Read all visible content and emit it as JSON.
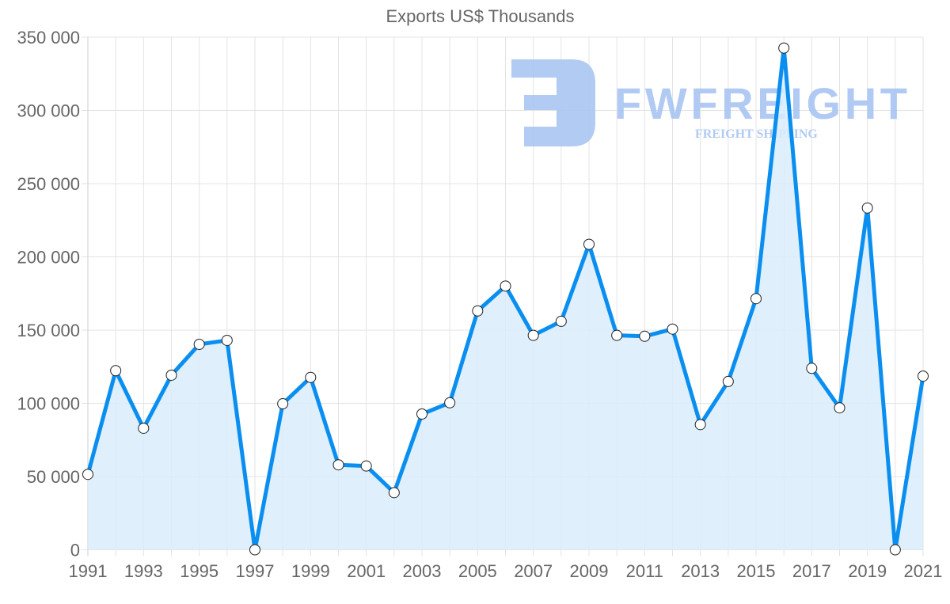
{
  "chart_data": {
    "type": "line",
    "title": "Exports US$ Thousands",
    "xlabel": "",
    "ylabel": "",
    "ylim": [
      0,
      350000
    ],
    "grid": true,
    "legend": "none",
    "fill": true,
    "yticks": [
      "0",
      "50 000",
      "100 000",
      "150 000",
      "200 000",
      "250 000",
      "300 000",
      "350 000"
    ],
    "xtick_labels": [
      "1991",
      "1993",
      "1995",
      "1997",
      "1999",
      "2001",
      "2003",
      "2005",
      "2007",
      "2009",
      "2011",
      "2013",
      "2015",
      "2017",
      "2019",
      "2021"
    ],
    "x": [
      1991,
      1992,
      1993,
      1994,
      1995,
      1996,
      1997,
      1998,
      1999,
      2000,
      2001,
      2002,
      2003,
      2004,
      2005,
      2006,
      2007,
      2008,
      2009,
      2010,
      2011,
      2012,
      2013,
      2014,
      2015,
      2016,
      2017,
      2018,
      2019,
      2020,
      2021
    ],
    "series": [
      {
        "name": "Exports",
        "color": "#0a8ff0",
        "fill_color": "#d9ecfc",
        "values": [
          51500,
          122300,
          83000,
          119200,
          140300,
          143000,
          0,
          99700,
          117700,
          58000,
          57200,
          39000,
          92700,
          100400,
          163100,
          180100,
          146400,
          156000,
          208600,
          146400,
          145800,
          150700,
          85500,
          114900,
          171500,
          342600,
          123900,
          96900,
          233400,
          0,
          118600
        ]
      }
    ]
  },
  "watermark": {
    "brand": "FWFREIGHT",
    "tagline": "FREIGHT SHIPPING",
    "color": "#a9c5f2"
  }
}
